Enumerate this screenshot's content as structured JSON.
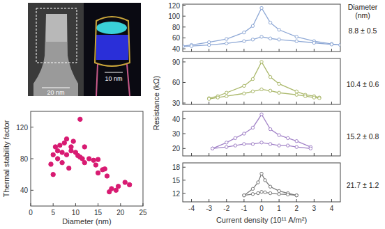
{
  "chart_data": [
    {
      "type": "scatter",
      "xlabel": "Diameter (nm)",
      "ylabel": "Thermal stability factor",
      "x": [
        4.5,
        5,
        5,
        5.5,
        6,
        6,
        6.5,
        7,
        7,
        7.5,
        8,
        8,
        8.5,
        9,
        9,
        9.5,
        10,
        10.5,
        11,
        11,
        11.5,
        12,
        12,
        13,
        14,
        14.5,
        15,
        15,
        16,
        16.5,
        17,
        17.5,
        18,
        19,
        19.5,
        21,
        22
      ],
      "series": [
        {
          "color": "#d81b72",
          "marker": "circle",
          "values": [
            73,
            60,
            85,
            95,
            80,
            90,
            97,
            75,
            88,
            100,
            85,
            105,
            68,
            95,
            90,
            102,
            88,
            84,
            130,
            82,
            80,
            95,
            75,
            80,
            78,
            72,
            79,
            62,
            66,
            67,
            58,
            38,
            42,
            40,
            45,
            50,
            47
          ]
        }
      ],
      "xlim": [
        0,
        25
      ],
      "xticks": [
        0,
        5,
        10,
        15,
        20,
        25
      ],
      "ylim": [
        20,
        140
      ],
      "yticks": [
        40,
        80,
        120
      ]
    },
    {
      "type": "line",
      "annotation": "8.8 ± 0.5",
      "tick_labels": "y",
      "x": [
        -4.5,
        -4,
        -3,
        -2,
        -1,
        -0.5,
        0,
        0.5,
        1,
        2,
        3,
        4,
        4.5
      ],
      "series": [
        {
          "color": "#8fa9d6",
          "marker": "open-circle",
          "values": [
            45,
            47,
            52,
            58,
            70,
            82,
            115,
            88,
            75,
            62,
            54,
            49,
            47
          ]
        },
        {
          "color": "#8fa9d6",
          "marker": "open-circle",
          "values": [
            44,
            45,
            47,
            50,
            54,
            57,
            62,
            59,
            57,
            54,
            51,
            48,
            47
          ]
        }
      ],
      "xlim": [
        -4.5,
        4.5
      ],
      "xticks": [
        -4,
        -3,
        -2,
        -1,
        0,
        1,
        2,
        3,
        4
      ],
      "ylim": [
        35,
        122
      ],
      "yticks": [
        40,
        60,
        80,
        100,
        120
      ]
    },
    {
      "type": "line",
      "annotation": "10.4 ± 0.6",
      "tick_labels": "y",
      "x": [
        -3,
        -2.5,
        -2,
        -1,
        -0.5,
        0,
        0.5,
        1,
        2,
        2.5,
        3,
        3.3
      ],
      "series": [
        {
          "color": "#aab86a",
          "marker": "open-circle",
          "values": [
            37,
            40,
            45,
            55,
            65,
            90,
            68,
            58,
            47,
            42,
            40,
            38
          ]
        },
        {
          "color": "#aab86a",
          "marker": "open-circle",
          "values": [
            36,
            38,
            40,
            44,
            47,
            50,
            48,
            45,
            42,
            40,
            38,
            37
          ]
        }
      ],
      "xlim": [
        -4.5,
        4.5
      ],
      "xticks": [
        -4,
        -3,
        -2,
        -1,
        0,
        1,
        2,
        3,
        4
      ],
      "ylim": [
        28,
        95
      ],
      "yticks": [
        30,
        60,
        90
      ]
    },
    {
      "type": "line",
      "annotation": "15.2 ± 0.8",
      "tick_labels": "y",
      "x": [
        -2.8,
        -2,
        -1.5,
        -1,
        -0.5,
        0,
        0.5,
        1,
        1.5,
        2,
        2.8
      ],
      "series": [
        {
          "color": "#a283c8",
          "marker": "open-circle",
          "values": [
            20,
            24,
            27,
            30,
            34,
            43,
            33,
            29,
            27,
            25,
            21
          ]
        },
        {
          "color": "#a283c8",
          "marker": "open-circle",
          "values": [
            20,
            21,
            22,
            23,
            23,
            24,
            23,
            22,
            22,
            21,
            20
          ]
        }
      ],
      "xlim": [
        -4.5,
        4.5
      ],
      "xticks": [
        -4,
        -3,
        -2,
        -1,
        0,
        1,
        2,
        3,
        4
      ],
      "ylim": [
        15,
        45
      ],
      "yticks": [
        20,
        30,
        40
      ]
    },
    {
      "type": "line",
      "annotation": "21.7 ± 1.2",
      "xlabel": "Current density (10¹¹ A/m²)",
      "x": [
        -1,
        -0.5,
        -0.2,
        0,
        0.2,
        0.5,
        1,
        1.5,
        2
      ],
      "series": [
        {
          "color": "#7a7a7a",
          "marker": "open-circle",
          "values": [
            11.5,
            13,
            14.5,
            16.5,
            15,
            13.5,
            12.5,
            12,
            11.5
          ]
        },
        {
          "color": "#7a7a7a",
          "marker": "open-circle",
          "values": [
            11.5,
            11.8,
            12,
            12.3,
            12.2,
            12,
            11.8,
            11.7,
            11.5
          ]
        }
      ],
      "xlim": [
        -4.5,
        4.5
      ],
      "xticks": [
        -4,
        -3,
        -2,
        -1,
        0,
        1,
        2,
        3,
        4
      ],
      "ylim": [
        10,
        19
      ],
      "yticks": [
        12,
        15,
        18
      ]
    }
  ],
  "figure": {
    "ylabel": "Resistance (kΩ)",
    "diameter_heading": "Diameter (nm)"
  },
  "images": [
    {
      "scale_bar": "20 nm"
    },
    {
      "scale_bar": "10 nm"
    }
  ]
}
